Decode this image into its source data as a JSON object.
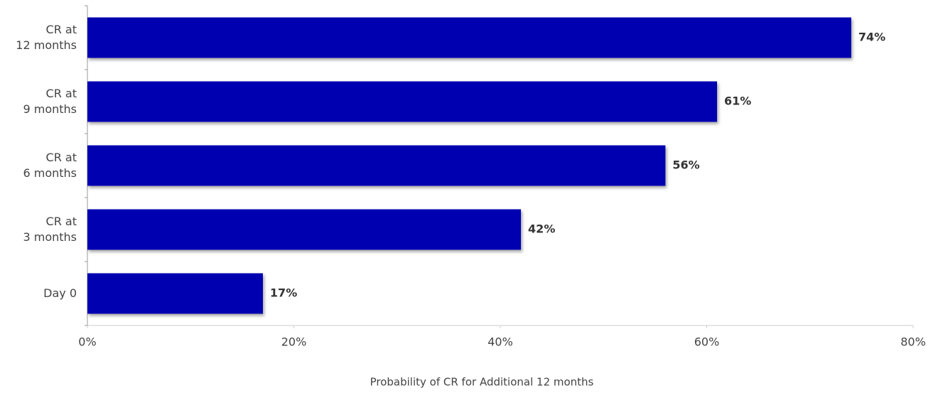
{
  "chart_data": {
    "type": "hbar",
    "x_label": "Probability of CR for Additional 12 months",
    "categories": [
      "CR at\n12 months",
      "CR at\n9 months",
      "CR at\n6 months",
      "CR at\n3 months",
      "Day 0"
    ],
    "values": [
      74,
      61,
      56,
      42,
      17
    ],
    "value_labels": [
      "74%",
      "61%",
      "56%",
      "42%",
      "17%"
    ],
    "color": "#0000b0",
    "xlim": [
      0,
      80
    ],
    "xticks": [
      {
        "value": 0,
        "label": "0%"
      },
      {
        "value": 20,
        "label": "20%"
      },
      {
        "value": 40,
        "label": "40%"
      },
      {
        "value": 60,
        "label": "60%"
      },
      {
        "value": 80,
        "label": "80%"
      }
    ],
    "grid": false
  }
}
